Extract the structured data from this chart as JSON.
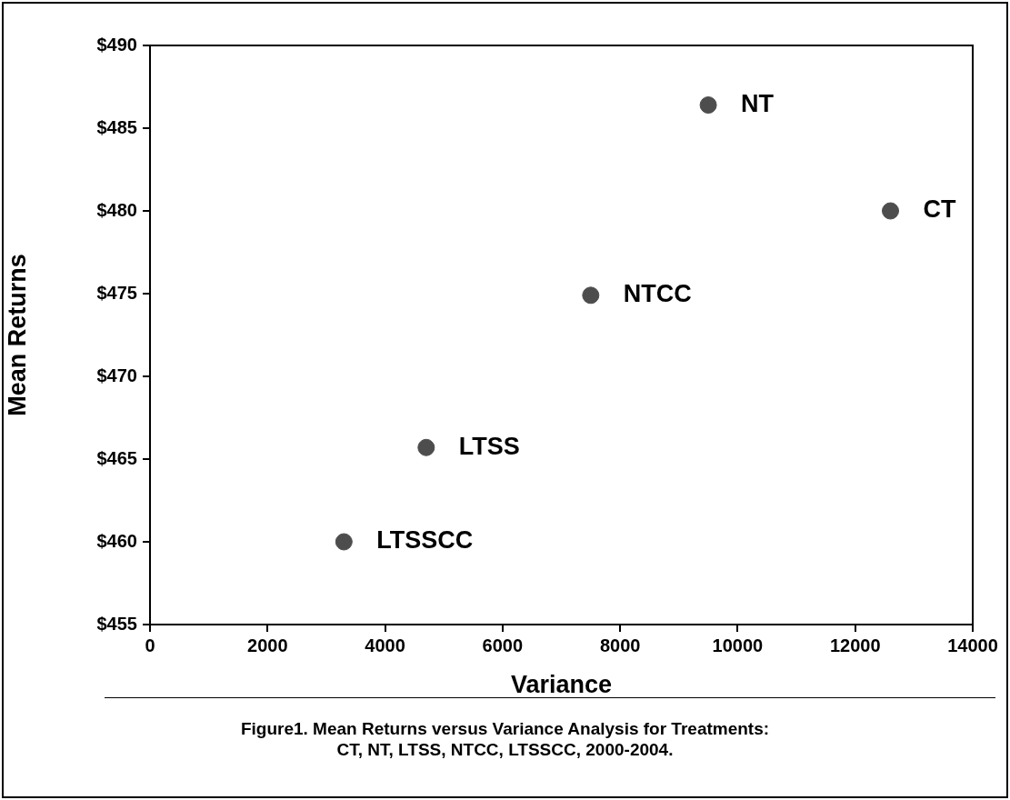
{
  "chart_data": {
    "type": "scatter",
    "title": "Figure1. Mean Returns versus Variance Analysis for Treatments:\nCT, NT, LTSS, NTCC, LTSSCC, 2000-2004.",
    "xlabel": "Variance",
    "ylabel": "Mean Returns",
    "x": [
      9500,
      12600,
      7500,
      4700,
      3300
    ],
    "series": [
      {
        "color": "#4d4d4d",
        "values": [
          486.4,
          480,
          474.9,
          465.7,
          460
        ]
      }
    ],
    "annotations": [
      {
        "text": "NT",
        "x": 9500,
        "y": 486.4
      },
      {
        "text": "CT",
        "x": 12600,
        "y": 480
      },
      {
        "text": "NTCC",
        "x": 7500,
        "y": 474.9
      },
      {
        "text": "LTSS",
        "x": 4700,
        "y": 465.7
      },
      {
        "text": "LTSSCC",
        "x": 3300,
        "y": 460
      }
    ],
    "xlim": [
      0,
      14000
    ],
    "xticks": [
      0,
      2000,
      4000,
      6000,
      8000,
      10000,
      12000,
      14000
    ],
    "ylim": [
      455,
      490
    ],
    "yticks": [
      {
        "value": 455,
        "label": "$455"
      },
      {
        "value": 460,
        "label": "$460"
      },
      {
        "value": 465,
        "label": "$465"
      },
      {
        "value": 470,
        "label": "$470"
      },
      {
        "value": 475,
        "label": "$475"
      },
      {
        "value": 480,
        "label": "$480"
      },
      {
        "value": 485,
        "label": "$485"
      },
      {
        "value": 490,
        "label": "$490"
      }
    ],
    "grid": false,
    "legend": false,
    "marker": "circle"
  }
}
